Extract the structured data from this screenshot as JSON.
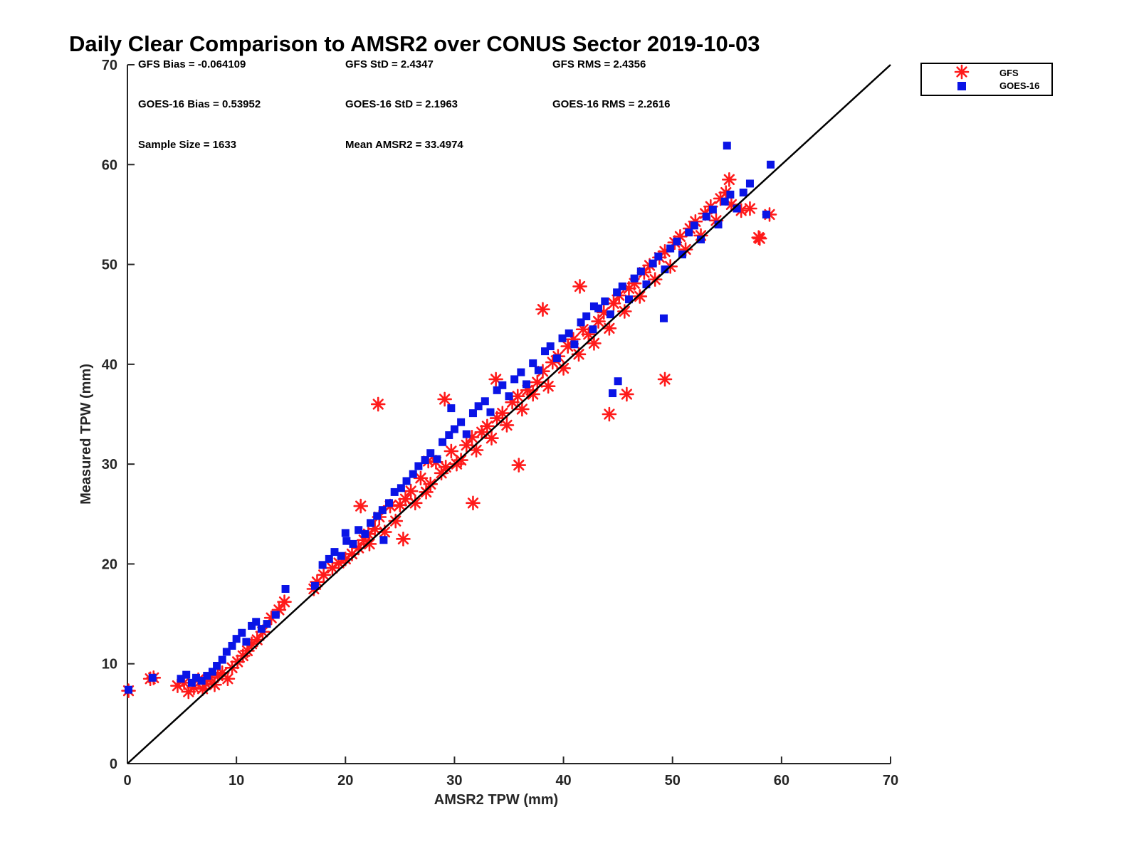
{
  "colors": {
    "gfs": "#ff1a1a",
    "goes": "#0a14e6",
    "axis": "#262626",
    "reference_line": "#000000"
  },
  "chart_data": {
    "type": "scatter",
    "title": "Daily Clear Comparison to AMSR2 over CONUS Sector 2019-10-03",
    "xlabel": "AMSR2 TPW (mm)",
    "ylabel": "Measured TPW (mm)",
    "xlim": [
      0,
      70
    ],
    "ylim": [
      0,
      70
    ],
    "xticks": [
      "0",
      "10",
      "20",
      "30",
      "40",
      "50",
      "60",
      "70"
    ],
    "yticks": [
      "0",
      "10",
      "20",
      "30",
      "40",
      "50",
      "60",
      "70"
    ],
    "grid": false,
    "legend_position": "top-right-outside",
    "reference_line": {
      "from": [
        0,
        0
      ],
      "to": [
        70,
        70
      ]
    },
    "stats": {
      "gfs_bias": "GFS Bias = -0.064109",
      "gfs_std": "GFS StD = 2.4347",
      "gfs_rms": "GFS RMS = 2.4356",
      "goes_bias": "GOES-16 Bias = 0.53952",
      "goes_std": "GOES-16 StD = 2.1963",
      "goes_rms": "GOES-16 RMS = 2.2616",
      "sample_size": "Sample Size = 1633",
      "mean_amsr2": "Mean AMSR2 = 33.4974"
    },
    "series": [
      {
        "name": "GFS",
        "marker": "asterisk",
        "x": [
          0.1,
          2.1,
          2.4,
          4.6,
          5.2,
          5.6,
          6.1,
          6.5,
          6.9,
          7.2,
          7.6,
          8.0,
          8.3,
          8.7,
          9.2,
          9.6,
          10.1,
          10.6,
          11.0,
          11.4,
          11.9,
          12.4,
          13.2,
          13.9,
          14.4,
          17.1,
          17.4,
          18.0,
          18.8,
          19.4,
          20.0,
          20.6,
          21.2,
          21.7,
          22.2,
          22.7,
          23.1,
          23.6,
          24.1,
          24.6,
          25.0,
          25.5,
          26.0,
          26.4,
          26.9,
          27.4,
          27.8,
          28.3,
          28.8,
          29.2,
          29.7,
          30.2,
          30.6,
          31.1,
          31.6,
          32.0,
          32.5,
          33.0,
          33.4,
          33.9,
          34.4,
          34.8,
          35.3,
          35.8,
          36.2,
          36.7,
          37.2,
          37.6,
          38.1,
          38.6,
          39.0,
          39.5,
          40.0,
          40.4,
          40.9,
          41.4,
          41.8,
          42.3,
          42.8,
          43.2,
          43.7,
          44.2,
          44.6,
          45.1,
          45.6,
          46.0,
          46.5,
          47.0,
          47.4,
          47.9,
          48.4,
          48.8,
          49.3,
          49.8,
          50.2,
          50.7,
          51.2,
          51.6,
          52.1,
          52.6,
          53.0,
          53.5,
          54.0,
          54.4,
          54.9,
          55.4,
          56.3,
          57.1,
          58.0,
          58.9,
          29.1,
          25.3,
          23.0,
          38.1,
          41.5,
          44.2,
          45.8,
          49.3,
          55.2,
          57.9,
          33.8,
          31.7,
          22.1,
          21.4,
          27.6,
          35.9
        ],
        "y": [
          7.3,
          8.5,
          8.6,
          7.8,
          8.1,
          7.2,
          7.6,
          8.4,
          7.5,
          8.0,
          8.6,
          7.9,
          8.8,
          9.1,
          8.5,
          9.6,
          10.2,
          10.8,
          11.3,
          12.0,
          12.4,
          13.2,
          14.6,
          15.4,
          16.2,
          17.5,
          18.2,
          18.9,
          19.6,
          20.1,
          20.5,
          21.0,
          21.6,
          22.4,
          22.0,
          23.5,
          24.7,
          23.2,
          25.8,
          24.3,
          25.9,
          26.5,
          27.3,
          26.1,
          28.6,
          27.2,
          28.0,
          30.2,
          29.1,
          29.7,
          31.3,
          30.0,
          30.4,
          31.9,
          32.7,
          31.4,
          33.2,
          33.8,
          32.6,
          34.6,
          35.1,
          33.9,
          36.2,
          36.8,
          35.5,
          37.4,
          37.0,
          38.2,
          39.3,
          37.8,
          40.2,
          40.8,
          39.6,
          41.8,
          42.5,
          41.0,
          43.5,
          43.0,
          42.1,
          44.3,
          45.2,
          43.6,
          46.1,
          46.9,
          45.3,
          47.6,
          48.1,
          46.8,
          49.2,
          49.9,
          48.5,
          50.7,
          51.3,
          49.8,
          52.2,
          52.8,
          51.5,
          53.6,
          54.3,
          52.9,
          55.1,
          55.8,
          54.4,
          56.6,
          57.2,
          56.0,
          55.4,
          55.6,
          52.6,
          55.0,
          36.5,
          22.5,
          36.0,
          45.5,
          47.8,
          35.0,
          37.0,
          38.5,
          58.5,
          52.7,
          38.5,
          26.1,
          23.0,
          25.8,
          30.3,
          29.9
        ]
      },
      {
        "name": "GOES-16",
        "marker": "square",
        "x": [
          0.1,
          2.3,
          4.9,
          5.4,
          5.9,
          6.3,
          6.8,
          7.3,
          7.8,
          8.2,
          8.7,
          9.1,
          9.6,
          10.0,
          10.5,
          10.9,
          11.4,
          11.8,
          12.3,
          12.8,
          13.6,
          14.5,
          17.2,
          17.9,
          18.5,
          19.0,
          19.6,
          20.1,
          20.7,
          21.2,
          21.8,
          22.3,
          22.9,
          23.4,
          24.0,
          24.5,
          25.1,
          25.6,
          26.2,
          26.7,
          27.3,
          27.8,
          28.4,
          28.9,
          29.5,
          30.0,
          30.6,
          31.1,
          31.7,
          32.2,
          32.8,
          33.3,
          33.9,
          34.4,
          35.0,
          35.5,
          36.1,
          36.6,
          37.2,
          37.7,
          38.3,
          38.8,
          39.4,
          39.9,
          40.5,
          41.0,
          41.6,
          42.1,
          42.7,
          43.2,
          43.8,
          44.3,
          44.9,
          45.4,
          46.0,
          46.5,
          47.1,
          47.6,
          48.2,
          48.7,
          49.3,
          49.8,
          50.4,
          50.9,
          51.5,
          52.0,
          52.6,
          53.1,
          53.7,
          54.2,
          54.8,
          55.3,
          55.9,
          56.5,
          57.1,
          58.6,
          55.0,
          59.0,
          49.2,
          45.0,
          44.5,
          42.8,
          29.7,
          23.5,
          20.0
        ],
        "y": [
          7.4,
          8.6,
          8.5,
          8.9,
          8.1,
          8.6,
          8.3,
          8.8,
          9.2,
          9.8,
          10.4,
          11.2,
          11.8,
          12.5,
          13.1,
          12.2,
          13.8,
          14.2,
          13.5,
          14.0,
          14.9,
          17.5,
          17.8,
          19.9,
          20.5,
          21.2,
          20.8,
          22.3,
          22.0,
          23.4,
          23.0,
          24.1,
          24.8,
          25.4,
          26.1,
          27.2,
          27.6,
          28.3,
          29.0,
          29.8,
          30.4,
          31.1,
          30.5,
          32.2,
          32.9,
          33.5,
          34.2,
          33.0,
          35.1,
          35.8,
          36.3,
          35.2,
          37.4,
          37.9,
          36.8,
          38.5,
          39.2,
          38.0,
          40.1,
          39.4,
          41.3,
          41.8,
          40.6,
          42.6,
          43.1,
          42.0,
          44.2,
          44.8,
          43.5,
          45.6,
          46.3,
          45.0,
          47.2,
          47.8,
          46.5,
          48.6,
          49.3,
          48.0,
          50.1,
          50.8,
          49.5,
          51.6,
          52.3,
          51.0,
          53.2,
          53.9,
          52.5,
          54.8,
          55.5,
          54.0,
          56.3,
          57.0,
          55.6,
          57.2,
          58.1,
          55.0,
          61.9,
          60.0,
          44.6,
          38.3,
          37.1,
          45.8,
          35.6,
          22.4,
          23.1
        ]
      }
    ]
  }
}
